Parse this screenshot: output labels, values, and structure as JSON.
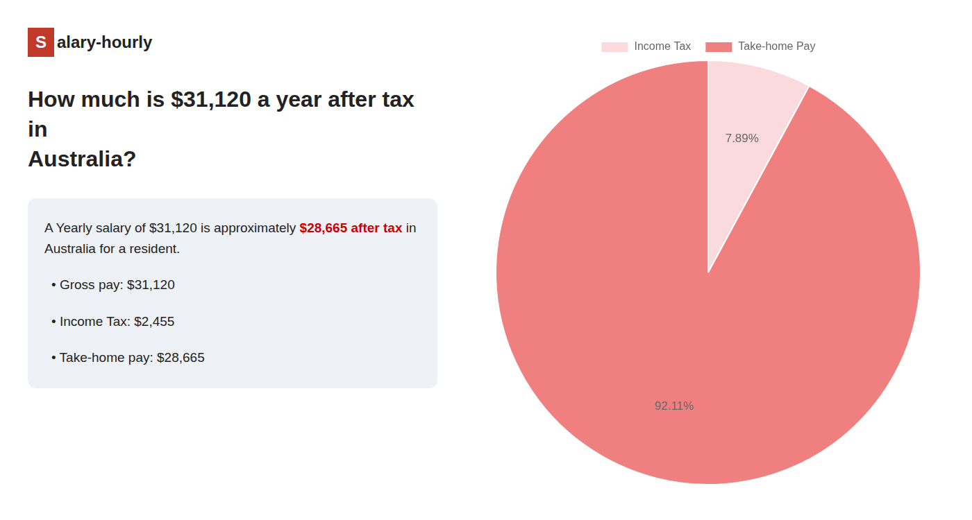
{
  "chart_data": {
    "type": "pie",
    "title": "How much is $31,120 a year after tax in\nAustralia?",
    "annotations": [
      {
        "text": "S",
        "color": "#c0392b"
      },
      {
        "text": "alary-hourly"
      },
      {
        "text": "A Yearly salary of $31,120 is approximately "
      },
      {
        "text": "$28,665 after tax",
        "color": "#cc0000"
      },
      {
        "text": " in"
      },
      {
        "text": "Australia for a resident."
      },
      {
        "text": "• Gross pay: $31,120"
      },
      {
        "text": "• Income Tax: $2,455"
      },
      {
        "text": "• Take-home pay: $28,665"
      }
    ],
    "categories": [
      "Income Tax",
      "Take-home Pay"
    ],
    "values": [
      7.89,
      92.11
    ],
    "value_labels": [
      "7.89%",
      "92.11%"
    ],
    "colors": [
      "#fadadd",
      "#f08080"
    ],
    "data_labels": true,
    "legend": "top"
  }
}
